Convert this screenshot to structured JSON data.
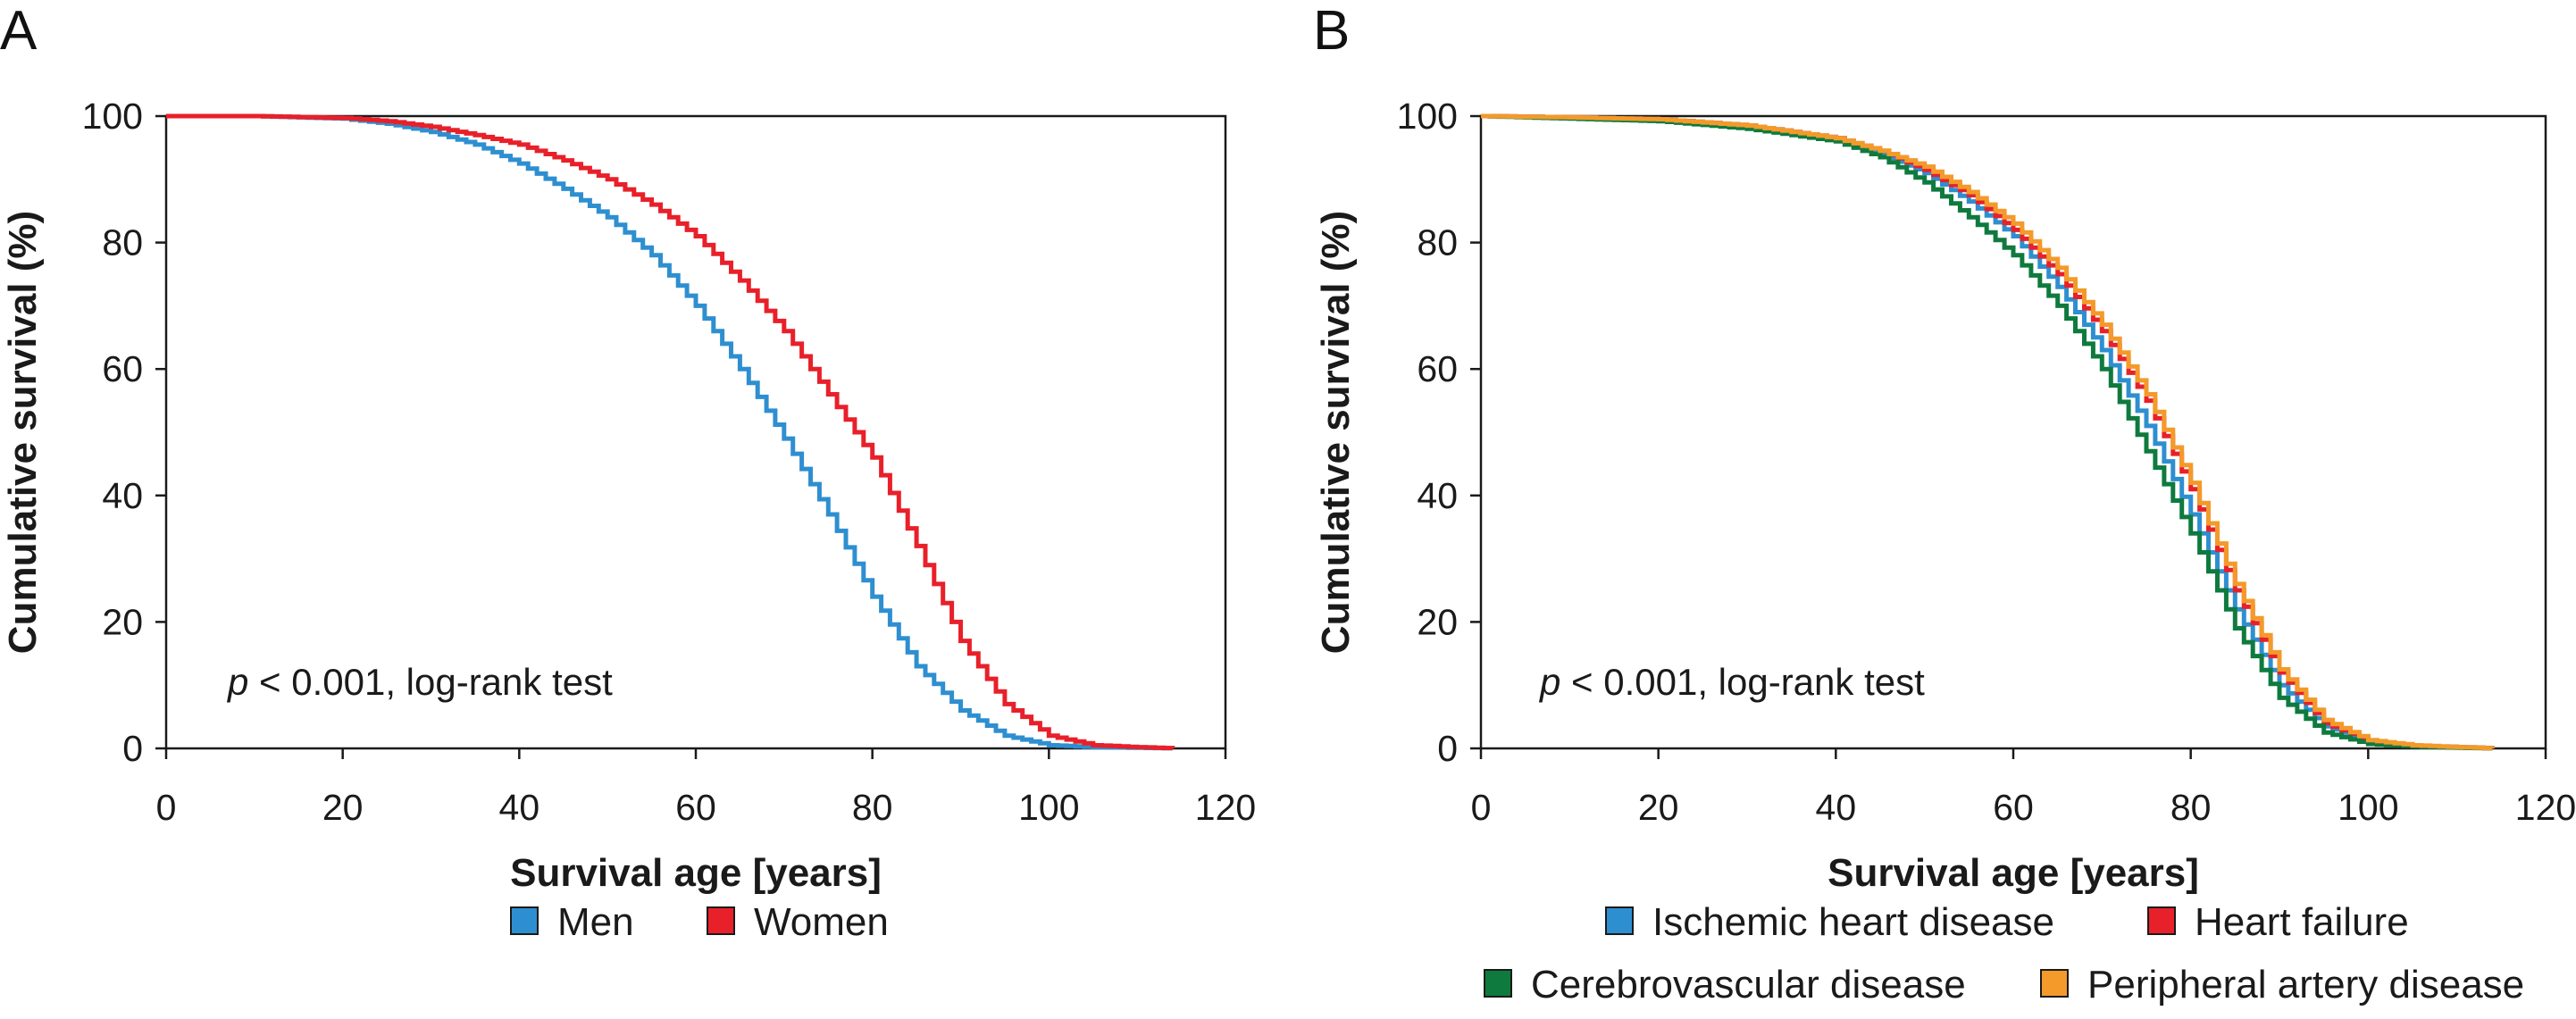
{
  "chart_data": [
    {
      "panel": "A",
      "type": "line",
      "xlabel": "Survival age [years]",
      "ylabel": "Cumulative survival (%)",
      "xlim": [
        0,
        120
      ],
      "ylim": [
        0,
        100
      ],
      "xticks": [
        0,
        20,
        40,
        60,
        80,
        100,
        120
      ],
      "yticks": [
        0,
        20,
        40,
        60,
        80,
        100
      ],
      "grid": false,
      "legend_position": "bottom",
      "annotation": {
        "p": "p",
        "rest": " < 0.001, log-rank test"
      },
      "series": [
        {
          "name": "Men",
          "color": "#2E8FD0",
          "x": [
            0,
            10,
            20,
            25,
            30,
            35,
            40,
            45,
            50,
            55,
            60,
            65,
            70,
            75,
            80,
            85,
            90,
            95,
            100,
            105,
            110,
            114
          ],
          "y": [
            100,
            100,
            99.6,
            98.8,
            97.5,
            95.5,
            92.5,
            88.5,
            84,
            78,
            70,
            60,
            49,
            37,
            24,
            13,
            6,
            2,
            0.5,
            0.2,
            0.1,
            0
          ]
        },
        {
          "name": "Women",
          "color": "#E8202A",
          "x": [
            0,
            10,
            20,
            25,
            30,
            35,
            40,
            45,
            50,
            55,
            60,
            65,
            70,
            75,
            80,
            85,
            90,
            95,
            100,
            105,
            110,
            114
          ],
          "y": [
            100,
            100,
            99.7,
            99.2,
            98.3,
            97,
            95.5,
            93,
            90,
            86,
            81,
            74,
            66,
            56,
            46,
            32,
            17,
            7,
            2,
            0.5,
            0.2,
            0
          ]
        }
      ]
    },
    {
      "panel": "B",
      "type": "line",
      "xlabel": "Survival age [years]",
      "ylabel": "Cumulative survival (%)",
      "xlim": [
        0,
        120
      ],
      "ylim": [
        0,
        100
      ],
      "xticks": [
        0,
        20,
        40,
        60,
        80,
        100,
        120
      ],
      "yticks": [
        0,
        20,
        40,
        60,
        80,
        100
      ],
      "grid": false,
      "legend_position": "bottom",
      "annotation": {
        "p": "p",
        "rest": " < 0.001, log-rank test"
      },
      "series": [
        {
          "name": "Ischemic heart disease",
          "color": "#2E8FD0",
          "x": [
            0,
            10,
            20,
            30,
            40,
            45,
            50,
            55,
            60,
            65,
            70,
            75,
            80,
            85,
            90,
            95,
            100,
            105,
            110,
            114
          ],
          "y": [
            100,
            99.8,
            99.5,
            98.5,
            96.5,
            94,
            91,
            86.5,
            81,
            73,
            63,
            51,
            37,
            22,
            10,
            3.5,
            1,
            0.4,
            0.2,
            0
          ]
        },
        {
          "name": "Heart failure",
          "color": "#E8202A",
          "x": [
            0,
            10,
            20,
            30,
            40,
            45,
            50,
            55,
            60,
            65,
            70,
            75,
            80,
            85,
            90,
            95,
            100,
            105,
            110,
            114
          ],
          "y": [
            100,
            99.8,
            99.5,
            98.5,
            96.5,
            94.5,
            91.5,
            87.5,
            82,
            75,
            66,
            55,
            41,
            25,
            12,
            4,
            1.2,
            0.4,
            0.2,
            0
          ]
        },
        {
          "name": "Cerebrovascular disease",
          "color": "#0E7A3E",
          "x": [
            0,
            10,
            20,
            30,
            40,
            45,
            50,
            55,
            60,
            65,
            70,
            75,
            80,
            85,
            90,
            95,
            100,
            105,
            110,
            114
          ],
          "y": [
            100,
            99.6,
            99.2,
            98,
            96,
            93.5,
            89.5,
            84,
            78,
            70,
            60,
            47,
            34,
            19,
            8,
            2.5,
            0.7,
            0.3,
            0.1,
            0
          ]
        },
        {
          "name": "Peripheral artery disease",
          "color": "#F39A2A",
          "x": [
            0,
            10,
            20,
            30,
            40,
            45,
            50,
            55,
            60,
            65,
            70,
            75,
            80,
            85,
            90,
            95,
            100,
            105,
            110,
            114
          ],
          "y": [
            100,
            99.8,
            99.5,
            98.5,
            96.5,
            94.5,
            92,
            88,
            83,
            76,
            67,
            56,
            42,
            26,
            12.5,
            4.5,
            1.3,
            0.5,
            0.2,
            0
          ]
        }
      ]
    }
  ]
}
